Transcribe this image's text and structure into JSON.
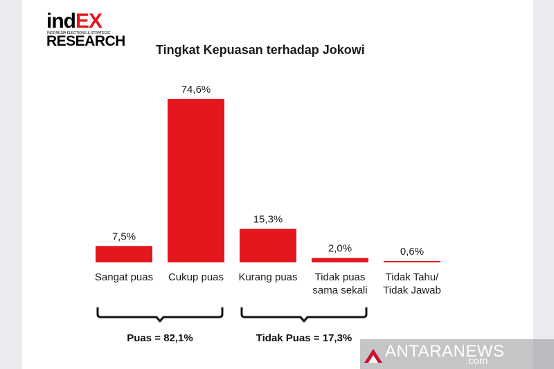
{
  "logo": {
    "word_start": "ind",
    "word_end": "EX",
    "tagline": "INDONESIA ELECTIONS & STRATEGIC",
    "sub": "RESEARCH"
  },
  "colors": {
    "bar": "#e3171d",
    "text": "#1a1a1a"
  },
  "chart_data": {
    "type": "bar",
    "title": "Tingkat Kepuasan terhadap Jokowi",
    "categories": [
      "Sangat puas",
      "Cukup puas",
      "Kurang puas",
      "Tidak puas sama sekali",
      "Tidak Tahu/ Tidak Jawab"
    ],
    "category_lines": [
      [
        "Sangat puas"
      ],
      [
        "Cukup puas"
      ],
      [
        "Kurang puas"
      ],
      [
        "Tidak puas",
        "sama sekali"
      ],
      [
        "Tidak Tahu/",
        "Tidak Jawab"
      ]
    ],
    "values": [
      7.5,
      74.6,
      15.3,
      2.0,
      0.6
    ],
    "value_labels": [
      "7,5%",
      "74,6%",
      "15,3%",
      "2,0%",
      "0,6%"
    ],
    "ylim": [
      0,
      80
    ],
    "grid": false,
    "annotations": [
      {
        "label": "Puas = 82,1%",
        "from": 0,
        "to": 1
      },
      {
        "label": "Tidak Puas = 17,3%",
        "from": 2,
        "to": 3
      }
    ]
  },
  "watermark": {
    "text": "ANTARANEWS",
    "suffix": ".com",
    "icon": "antara-logo-icon"
  }
}
